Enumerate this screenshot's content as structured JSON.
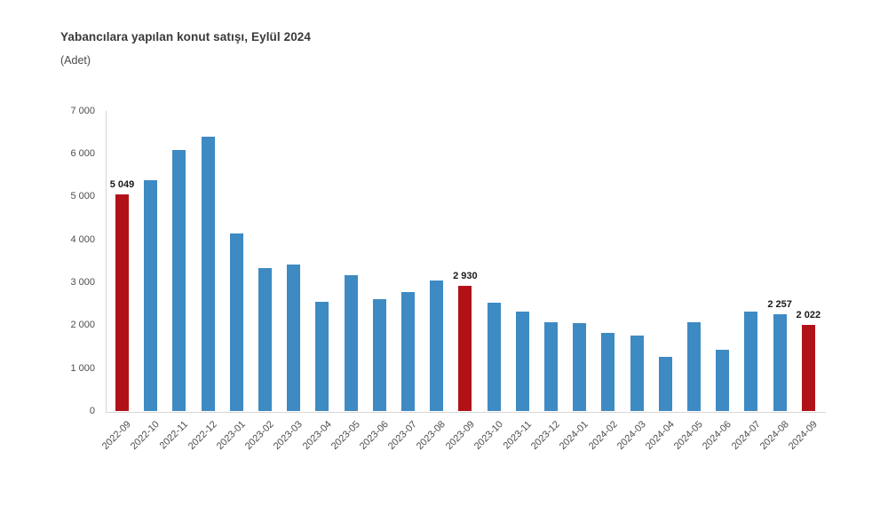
{
  "chart_data": {
    "type": "bar",
    "title": "Yabancılara yapılan konut satışı, Eylül 2024",
    "ylabel": "(Adet)",
    "xlabel": "",
    "categories": [
      "2022-09",
      "2022-10",
      "2022-11",
      "2022-12",
      "2023-01",
      "2023-02",
      "2023-03",
      "2023-04",
      "2023-05",
      "2023-06",
      "2023-07",
      "2023-08",
      "2023-09",
      "2023-10",
      "2023-11",
      "2023-12",
      "2024-01",
      "2024-02",
      "2024-03",
      "2024-04",
      "2024-05",
      "2024-06",
      "2024-07",
      "2024-08",
      "2024-09"
    ],
    "values": [
      5049,
      5380,
      6080,
      6400,
      4150,
      3350,
      3420,
      2560,
      3170,
      2620,
      2790,
      3040,
      2930,
      2530,
      2330,
      2070,
      2060,
      1840,
      1770,
      1270,
      2070,
      1430,
      2330,
      2257,
      2022
    ],
    "bar_labels": {
      "0": "5 049",
      "12": "2 930",
      "23": "2 257",
      "24": "2 022"
    },
    "highlight_indices": [
      0,
      12,
      24
    ],
    "ylim": [
      0,
      7000
    ],
    "ytick_labels": [
      "0",
      "1 000",
      "2 000",
      "3 000",
      "4 000",
      "5 000",
      "6 000",
      "7 000"
    ],
    "grid": "off",
    "legend": "none",
    "colors": {
      "bar": "#3e8ac3",
      "highlight": "#b11218",
      "axis": "#d6d6d6",
      "title_text": "#3a3a3a",
      "tick_text": "#4d4d4d",
      "value_label_text": "#1a1a1a"
    }
  }
}
